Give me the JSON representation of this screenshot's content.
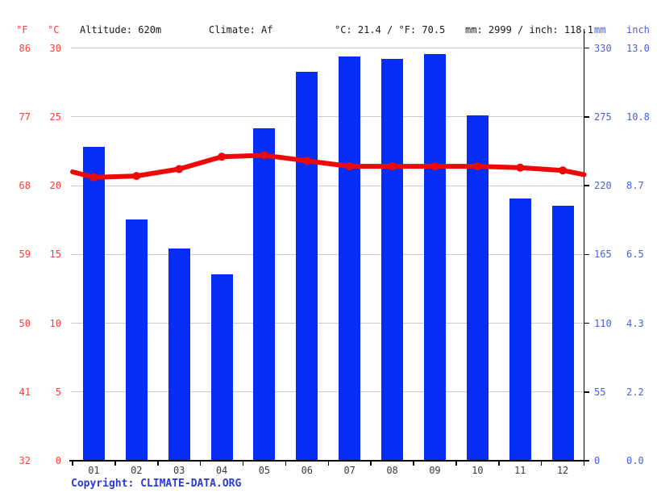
{
  "header": {
    "f_unit": "°F",
    "c_unit": "°C",
    "altitude": "Altitude: 620m",
    "climate": "Climate: Af",
    "temp_summary": "°C: 21.4 / °F: 70.5",
    "precip_summary": "mm: 2999 / inch: 118.1",
    "mm_unit": "mm",
    "inch_unit": "inch"
  },
  "axes": {
    "left_f_ticks": [
      "86",
      "77",
      "68",
      "59",
      "50",
      "41",
      "32"
    ],
    "left_c_ticks": [
      "30",
      "25",
      "20",
      "15",
      "10",
      "5",
      "0"
    ],
    "right_mm_ticks": [
      "330",
      "275",
      "220",
      "165",
      "110",
      "55",
      "0"
    ],
    "right_inch_ticks": [
      "13.0",
      "10.8",
      "8.7",
      "6.5",
      "4.3",
      "2.2",
      "0.0"
    ]
  },
  "chart_data": {
    "type": "bar+line",
    "categories": [
      "01",
      "02",
      "03",
      "04",
      "05",
      "06",
      "07",
      "08",
      "09",
      "10",
      "11",
      "12"
    ],
    "series": [
      {
        "name": "precipitation",
        "type": "bar",
        "unit": "mm",
        "values": [
          251,
          193,
          170,
          149,
          266,
          311,
          323,
          321,
          325,
          276,
          210,
          204
        ]
      },
      {
        "name": "temperature",
        "type": "line",
        "unit": "°C",
        "values": [
          20.6,
          20.7,
          21.2,
          22.1,
          22.2,
          21.8,
          21.4,
          21.4,
          21.4,
          21.4,
          21.3,
          21.1
        ],
        "edge_start_value": 21.0,
        "edge_end_value": 20.8
      }
    ],
    "ylim_left_c": [
      0,
      30
    ],
    "ylim_left_f": [
      32,
      86
    ],
    "ylim_right_mm": [
      0,
      330
    ],
    "ylim_right_inch": [
      0.0,
      13.0
    ],
    "grid": true,
    "legend": "none",
    "annual_mean_temp_c": 21.4,
    "annual_precip_mm": 2999
  },
  "footer": {
    "copyright": "Copyright: CLIMATE-DATA.ORG"
  },
  "colors": {
    "bar_blue": "#052df5",
    "line_red": "#ee0909",
    "label_red": "#f73e3e",
    "label_blue": "#4a5fdc",
    "grid_gray": "#cccccc",
    "axis_black": "#000000",
    "month_label": "#3c3c3c"
  }
}
